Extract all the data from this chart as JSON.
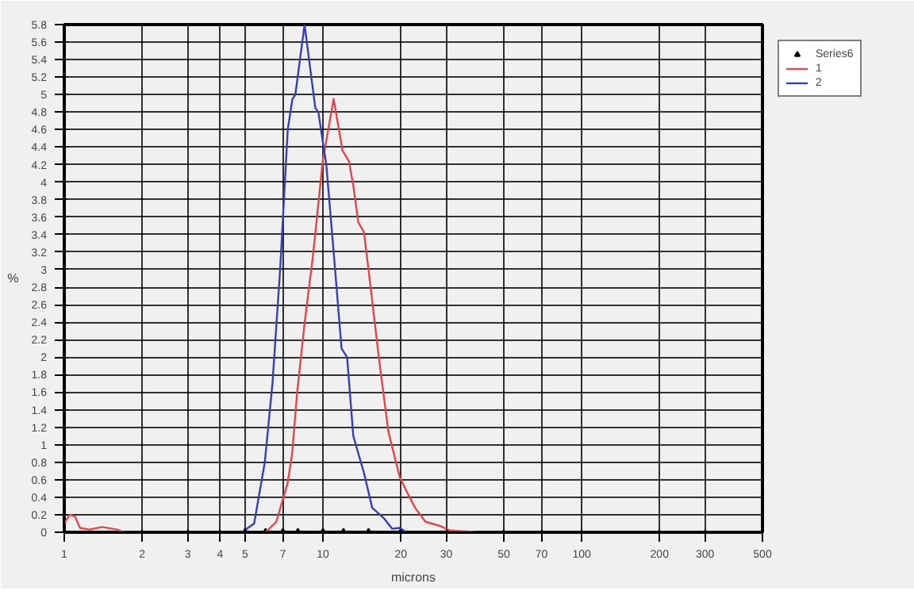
{
  "chart_data": {
    "type": "line",
    "xlabel": "microns",
    "ylabel": "%",
    "log": "x",
    "xlim": [
      1,
      500
    ],
    "xticks": [
      1,
      2,
      3,
      4,
      5,
      7,
      10,
      20,
      30,
      50,
      70,
      100,
      200,
      300,
      500
    ],
    "ylim": [
      0,
      5.8
    ],
    "yticks": [
      0,
      0.2,
      0.4,
      0.6,
      0.8,
      1,
      1.2,
      1.4,
      1.6,
      1.8,
      2,
      2.2,
      2.4,
      2.6,
      2.8,
      3,
      3.2,
      3.4,
      3.6,
      3.8,
      4,
      4.2,
      4.4,
      4.6,
      4.8,
      5,
      5.2,
      5.4,
      5.6,
      5.8
    ],
    "grid": true,
    "legend": "top right",
    "series": [
      {
        "name": "Series6",
        "type": "scatter",
        "marker": "triangle",
        "color": "#000000",
        "x": [
          5,
          6,
          7,
          8,
          10,
          12,
          15,
          20
        ],
        "values": [
          0,
          0,
          0,
          0,
          0,
          0,
          0,
          0
        ]
      },
      {
        "name": "1",
        "color": "#e0474c",
        "x": [
          1,
          1.05,
          1.1,
          1.15,
          1.25,
          1.4,
          1.6,
          1.7,
          6,
          6.6,
          7.3,
          7.6,
          7.95,
          8.5,
          9.1,
          9.3,
          9.98,
          11.0,
          11.9,
          12.6,
          13.1,
          13.7,
          14.4,
          15.0,
          16.5,
          17.9,
          19.8,
          21.2,
          22.7,
          24.9,
          28.5,
          30.9,
          40,
          100,
          500
        ],
        "values": [
          0.1,
          0.2,
          0.18,
          0.05,
          0.03,
          0.06,
          0.03,
          0,
          0,
          0.12,
          0.56,
          0.9,
          1.6,
          2.4,
          3.1,
          3.36,
          4.24,
          4.95,
          4.36,
          4.24,
          3.96,
          3.54,
          3.43,
          3.0,
          1.96,
          1.15,
          0.63,
          0.45,
          0.28,
          0.12,
          0.07,
          0.02,
          0,
          0,
          0
        ]
      },
      {
        "name": "2",
        "color": "#3a3fb0",
        "x": [
          1,
          4.86,
          5.42,
          5.96,
          6.38,
          6.83,
          7.31,
          7.62,
          7.82,
          8.49,
          9.34,
          9.6,
          10.3,
          11.0,
          11.8,
          12.4,
          13.1,
          14.4,
          15.5,
          17.2,
          18.5,
          19.8,
          21,
          100,
          500
        ],
        "values": [
          0,
          0,
          0.1,
          0.8,
          1.7,
          3.0,
          4.6,
          4.95,
          5.0,
          5.8,
          4.85,
          4.8,
          4.2,
          3.2,
          2.1,
          2.0,
          1.1,
          0.68,
          0.28,
          0.16,
          0.04,
          0.05,
          0,
          0,
          0
        ]
      }
    ]
  }
}
